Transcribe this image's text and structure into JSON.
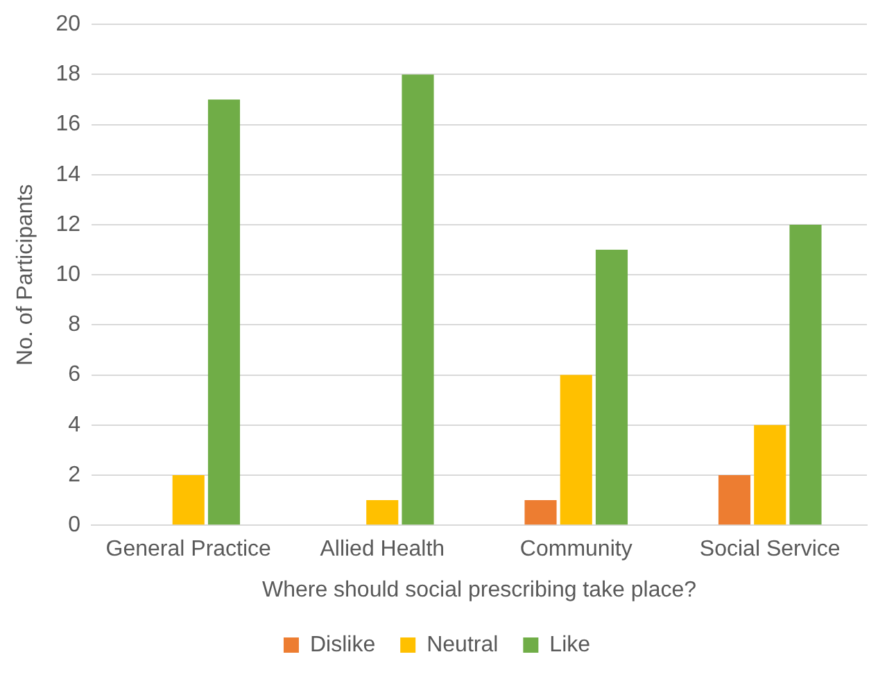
{
  "chart_data": {
    "type": "bar",
    "xlabel": "Where should social prescribing take place?",
    "ylabel": "No. of Participants",
    "categories": [
      "General Practice",
      "Allied Health",
      "Community",
      "Social Service"
    ],
    "series": [
      {
        "name": "Dislike",
        "color": "#ed7d31",
        "values": [
          0,
          0,
          1,
          2
        ]
      },
      {
        "name": "Neutral",
        "color": "#ffc000",
        "values": [
          2,
          1,
          6,
          4
        ]
      },
      {
        "name": "Like",
        "color": "#70ad47",
        "values": [
          17,
          18,
          11,
          12
        ]
      }
    ],
    "ylim": [
      0,
      20
    ],
    "yticks": [
      0,
      2,
      4,
      6,
      8,
      10,
      12,
      14,
      16,
      18,
      20
    ],
    "grid": "y",
    "legend": "bottom"
  }
}
